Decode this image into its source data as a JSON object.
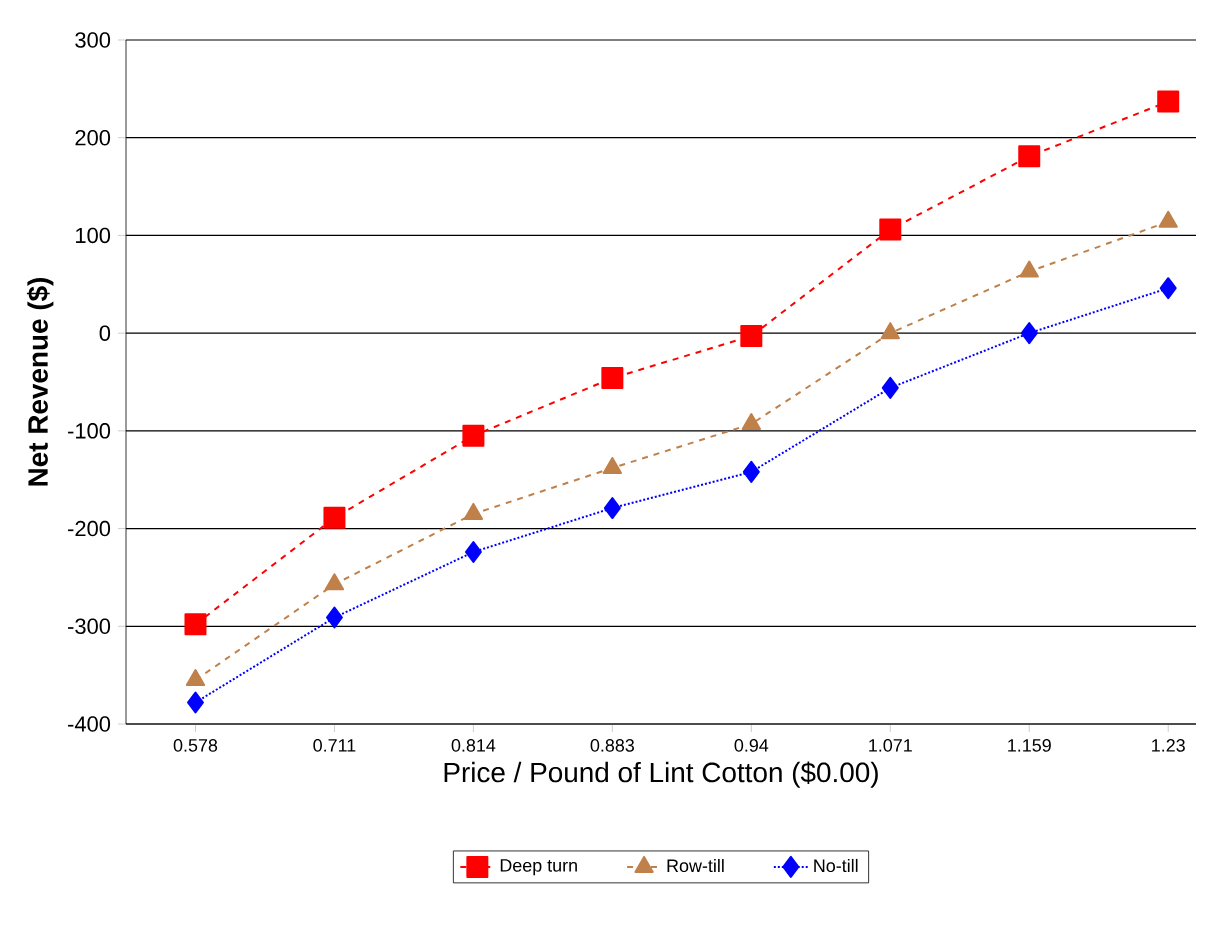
{
  "chart_data": {
    "type": "line",
    "xlabel": "Price / Pound of Lint Cotton ($0.00)",
    "ylabel": "Net Revenue ($)",
    "categories": [
      "0.578",
      "0.711",
      "0.814",
      "0.883",
      "0.94",
      "1.071",
      "1.159",
      "1.23"
    ],
    "series": [
      {
        "name": "Deep turn",
        "color": "#ff0000",
        "marker": "square",
        "line_style": "dashed",
        "values": [
          -298,
          -189,
          -105,
          -46,
          -3,
          106,
          181,
          237
        ]
      },
      {
        "name": "Row-till",
        "color": "#c0804a",
        "marker": "triangle",
        "line_style": "dashed",
        "values": [
          -355,
          -257,
          -185,
          -138,
          -93,
          0,
          63,
          114
        ]
      },
      {
        "name": "No-till",
        "color": "#0000ff",
        "marker": "diamond",
        "line_style": "dotted",
        "values": [
          -378,
          -291,
          -224,
          -179,
          -142,
          -56,
          0,
          46
        ]
      }
    ],
    "ylim": [
      -400,
      300
    ],
    "yticks": [
      -400,
      -300,
      -200,
      -100,
      0,
      100,
      200,
      300
    ],
    "grid": "y",
    "legend": "bottom"
  }
}
